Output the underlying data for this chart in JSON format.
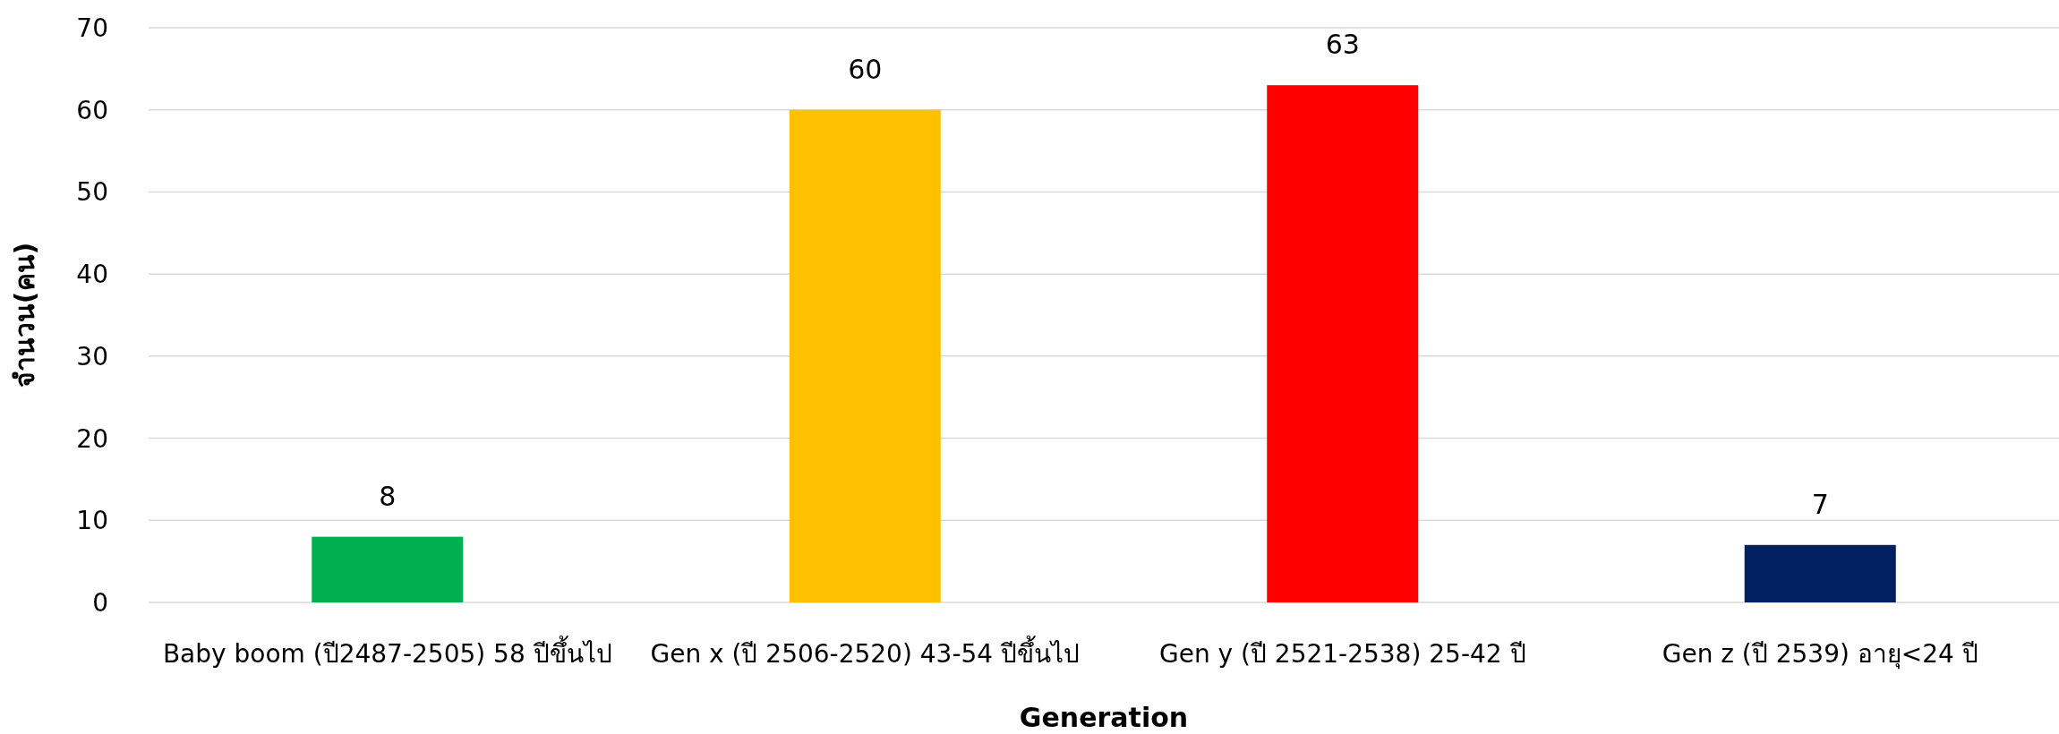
{
  "chart_data": {
    "type": "bar",
    "xlabel": "Generation",
    "ylabel": "จำนวน(คน)",
    "categories": [
      "Baby boom (ปี2487-2505) 58 ปีขึ้นไป",
      "Gen x (ปี 2506-2520) 43-54 ปีขึ้นไป",
      "Gen y (ปี 2521-2538) 25-42 ปี",
      "Gen z (ปี 2539) อายุ<24 ปี"
    ],
    "values": [
      8,
      60,
      63,
      7
    ],
    "colors": [
      "#00b050",
      "#ffc000",
      "#ff0000",
      "#002060"
    ],
    "ylim": [
      0,
      70
    ],
    "yticks": [
      0,
      10,
      20,
      30,
      40,
      50,
      60,
      70
    ],
    "grid": "y",
    "data_labels": true
  }
}
